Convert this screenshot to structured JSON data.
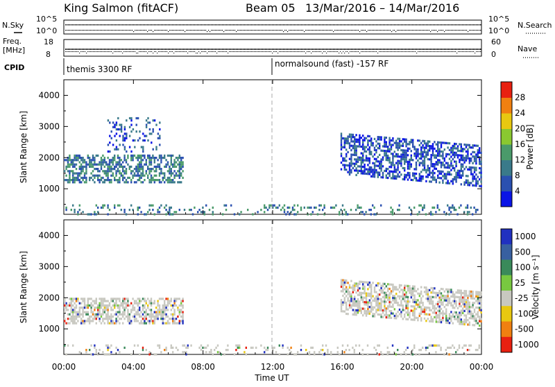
{
  "header": {
    "site": "King Salmon (fitACF)",
    "beam": "Beam 05",
    "date_range": "13/Mar/2016 – 14/Mar/2016"
  },
  "strip_labels": {
    "nsky": "N.Sky",
    "freq_line1": "Freq.",
    "freq_line2": "[MHz]",
    "cpid": "CPID",
    "nsearch": "N.Search",
    "nave": "Nave"
  },
  "strip_ticks": {
    "nsky_top": "10^5",
    "nsky_bottom": "10^0",
    "nsearch_top": "10^5",
    "nsearch_bottom": "10^0",
    "freq_top": "18",
    "freq_bottom": "8",
    "nave_top": "60",
    "nave_bottom": "0"
  },
  "cpid_segments": [
    {
      "label": "themis 3300 RF",
      "start_hour": 0
    },
    {
      "label": "normalsound (fast) -157 RF",
      "start_hour": 12
    }
  ],
  "xaxis": {
    "title": "Time UT",
    "ticks": [
      "00:00",
      "04:00",
      "08:00",
      "12:00",
      "16:00",
      "20:00",
      "00:00"
    ]
  },
  "power_panel": {
    "ylabel": "Slant Range [km]",
    "yticks": [
      "1000",
      "2000",
      "3000",
      "4000"
    ],
    "colorbar_label": "Power [dB]",
    "colorbar_ticks": [
      "4",
      "8",
      "12",
      "16",
      "20",
      "24",
      "28"
    ],
    "colors": [
      "#0a14e6",
      "#2a50b0",
      "#3a7a8a",
      "#4a9a6a",
      "#8ac830",
      "#e8c810",
      "#f08010",
      "#e82010"
    ]
  },
  "velocity_panel": {
    "ylabel": "Slant Range [km]",
    "yticks": [
      "1000",
      "2000",
      "3000",
      "4000"
    ],
    "colorbar_label": "Velocity [m s⁻¹]",
    "colorbar_ticks": [
      "1000",
      "500",
      "100",
      "25",
      "-25",
      "-100",
      "-500",
      "-1000"
    ],
    "colors": [
      "#2030c0",
      "#3860a0",
      "#3a8a5a",
      "#78c840",
      "#c8c8c0",
      "#e8c810",
      "#f08010",
      "#e82010"
    ]
  },
  "chart_data": {
    "type": "heatmap",
    "x_range_hours": [
      0,
      24
    ],
    "y_range_km": [
      180,
      4500
    ],
    "grid": false,
    "power_regions": [
      {
        "t_start": 0.0,
        "t_end": 6.8,
        "range_km": [
          1200,
          2100
        ],
        "typical_power_db": 12
      },
      {
        "t_start": 2.5,
        "t_end": 5.5,
        "range_km": [
          2200,
          3300
        ],
        "typical_power_db": 6
      },
      {
        "t_start": 15.9,
        "t_end": 24.0,
        "range_km": [
          1100,
          2400
        ],
        "typical_power_db": 8
      },
      {
        "t_start": 0.0,
        "t_end": 24.0,
        "range_km": [
          200,
          500
        ],
        "typical_power_db": 10
      }
    ],
    "velocity_regions": [
      {
        "t_start": 0.0,
        "t_end": 6.8,
        "range_km": [
          1200,
          2000
        ],
        "typical_velocity_ms": 0
      },
      {
        "t_start": 15.9,
        "t_end": 24.0,
        "range_km": [
          1100,
          2200
        ],
        "typical_velocity_ms": 0
      },
      {
        "t_start": 0.0,
        "t_end": 24.0,
        "range_km": [
          200,
          500
        ],
        "typical_velocity_ms": -50
      }
    ]
  }
}
